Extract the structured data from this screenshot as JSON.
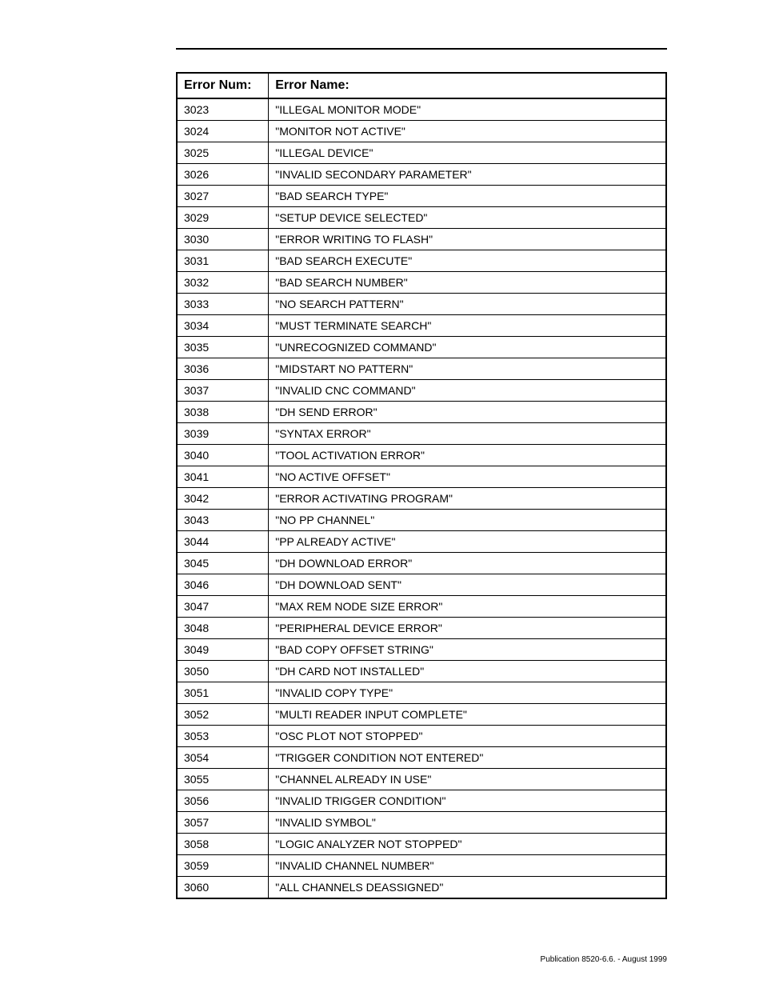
{
  "table": {
    "header_num": "Error Num:",
    "header_name": "Error Name:",
    "rows": [
      {
        "num": "3023",
        "name": "\"ILLEGAL MONITOR MODE\""
      },
      {
        "num": "3024",
        "name": "\"MONITOR NOT ACTIVE\""
      },
      {
        "num": "3025",
        "name": "\"ILLEGAL DEVICE\""
      },
      {
        "num": "3026",
        "name": "\"INVALID SECONDARY PARAMETER\""
      },
      {
        "num": "3027",
        "name": "\"BAD SEARCH TYPE\""
      },
      {
        "num": "3029",
        "name": "\"SETUP DEVICE SELECTED\""
      },
      {
        "num": "3030",
        "name": "\"ERROR WRITING TO FLASH\""
      },
      {
        "num": "3031",
        "name": "\"BAD SEARCH EXECUTE\""
      },
      {
        "num": "3032",
        "name": "\"BAD SEARCH NUMBER\""
      },
      {
        "num": "3033",
        "name": "\"NO SEARCH PATTERN\""
      },
      {
        "num": "3034",
        "name": "\"MUST TERMINATE SEARCH\""
      },
      {
        "num": "3035",
        "name": "\"UNRECOGNIZED COMMAND\""
      },
      {
        "num": "3036",
        "name": "\"MIDSTART NO PATTERN\""
      },
      {
        "num": "3037",
        "name": "\"INVALID CNC COMMAND\""
      },
      {
        "num": "3038",
        "name": "\"DH SEND ERROR\""
      },
      {
        "num": "3039",
        "name": "\"SYNTAX ERROR\""
      },
      {
        "num": "3040",
        "name": "\"TOOL ACTIVATION ERROR\""
      },
      {
        "num": "3041",
        "name": "\"NO ACTIVE OFFSET\""
      },
      {
        "num": "3042",
        "name": "\"ERROR ACTIVATING PROGRAM\""
      },
      {
        "num": "3043",
        "name": "\"NO PP CHANNEL\""
      },
      {
        "num": "3044",
        "name": "\"PP ALREADY ACTIVE\""
      },
      {
        "num": "3045",
        "name": "\"DH DOWNLOAD ERROR\""
      },
      {
        "num": "3046",
        "name": "\"DH DOWNLOAD SENT\""
      },
      {
        "num": "3047",
        "name": "\"MAX REM NODE SIZE ERROR\""
      },
      {
        "num": "3048",
        "name": "\"PERIPHERAL DEVICE ERROR\""
      },
      {
        "num": "3049",
        "name": "\"BAD COPY OFFSET STRING\""
      },
      {
        "num": "3050",
        "name": "\"DH CARD NOT INSTALLED\""
      },
      {
        "num": "3051",
        "name": "\"INVALID COPY TYPE\""
      },
      {
        "num": "3052",
        "name": "\"MULTI READER INPUT COMPLETE\""
      },
      {
        "num": "3053",
        "name": "\"OSC PLOT NOT STOPPED\""
      },
      {
        "num": "3054",
        "name": "\"TRIGGER CONDITION NOT ENTERED\""
      },
      {
        "num": "3055",
        "name": "\"CHANNEL ALREADY IN USE\""
      },
      {
        "num": "3056",
        "name": "\"INVALID TRIGGER CONDITION\""
      },
      {
        "num": "3057",
        "name": "\"INVALID SYMBOL\""
      },
      {
        "num": "3058",
        "name": "\"LOGIC ANALYZER NOT STOPPED\""
      },
      {
        "num": "3059",
        "name": "\"INVALID CHANNEL NUMBER\""
      },
      {
        "num": "3060",
        "name": "\"ALL CHANNELS DEASSIGNED\""
      }
    ]
  },
  "footer": "Publication 8520-6.6. - August 1999"
}
